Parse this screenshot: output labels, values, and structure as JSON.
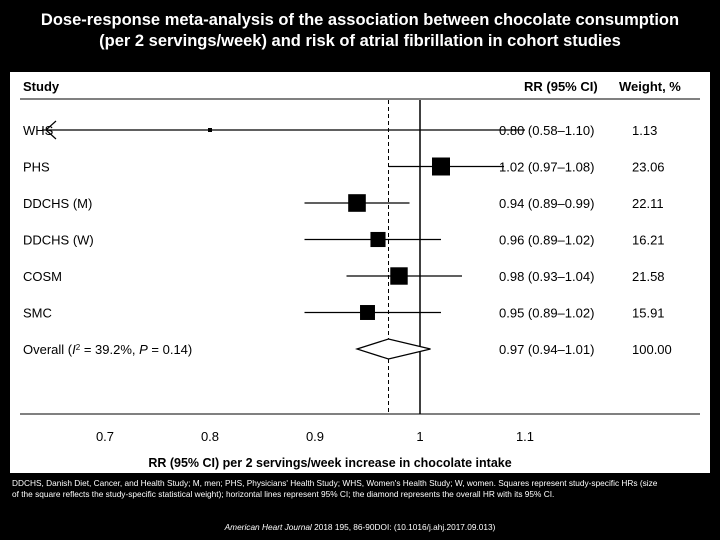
{
  "slide": {
    "title_line1": "Dose-response meta-analysis of the association between chocolate consumption",
    "title_line2": "(per 2 servings/week) and risk of atrial fibrillation in cohort studies",
    "caption_line1": "DDCHS, Danish Diet, Cancer, and Health Study; M, men; PHS, Physicians' Health Study; WHS, Women's Health Study; W, women. Squares represent study-specific HRs (size",
    "caption_line2": "of the square reflects the study-specific statistical weight); horizontal lines represent 95% CI; the diamond represents the overall HR with its 95% CI.",
    "citation_journal": "American Heart Journal",
    "citation_rest": " 2018 195, 86-90DOI: (10.1016/j.ahj.2017.09.013)"
  },
  "chart_data": {
    "type": "forest",
    "headers": {
      "study": "Study",
      "rr": "RR (95% CI)",
      "weight": "Weight, %"
    },
    "xlabel": "RR (95% CI) per 2 servings/week increase in chocolate intake",
    "xlim": [
      0.64,
      1.14
    ],
    "xticks": [
      0.7,
      0.8,
      0.9,
      1,
      1.1
    ],
    "xtick_labels": [
      "0.7",
      "0.8",
      "0.9",
      "1",
      "1.1"
    ],
    "null_line": 1.0,
    "overall_line": 0.97,
    "studies": [
      {
        "name": "WHS",
        "rr": 0.8,
        "lo": 0.58,
        "hi": 1.1,
        "rr_text": "0.80 (0.58–1.10)",
        "weight": "1.13",
        "weight_value": 1.13,
        "left_arrow": true
      },
      {
        "name": "PHS",
        "rr": 1.02,
        "lo": 0.97,
        "hi": 1.08,
        "rr_text": "1.02 (0.97–1.08)",
        "weight": "23.06",
        "weight_value": 23.06
      },
      {
        "name": "DDCHS (M)",
        "rr": 0.94,
        "lo": 0.89,
        "hi": 0.99,
        "rr_text": "0.94 (0.89–0.99)",
        "weight": "22.11",
        "weight_value": 22.11
      },
      {
        "name": "DDCHS (W)",
        "rr": 0.96,
        "lo": 0.89,
        "hi": 1.02,
        "rr_text": "0.96 (0.89–1.02)",
        "weight": "16.21",
        "weight_value": 16.21
      },
      {
        "name": "COSM",
        "rr": 0.98,
        "lo": 0.93,
        "hi": 1.04,
        "rr_text": "0.98 (0.93–1.04)",
        "weight": "21.58",
        "weight_value": 21.58
      },
      {
        "name": "SMC",
        "rr": 0.95,
        "lo": 0.89,
        "hi": 1.02,
        "rr_text": "0.95 (0.89–1.02)",
        "weight": "15.91",
        "weight_value": 15.91
      }
    ],
    "overall": {
      "label_prefix": "Overall (",
      "i2_symbol": "I",
      "i2_sup": "2",
      "i2_text": " = 39.2%, ",
      "p_symbol": "P",
      "p_text": " = 0.14)",
      "rr": 0.97,
      "lo": 0.94,
      "hi": 1.01,
      "rr_text": "0.97 (0.94–1.01)",
      "weight": "100.00"
    }
  }
}
